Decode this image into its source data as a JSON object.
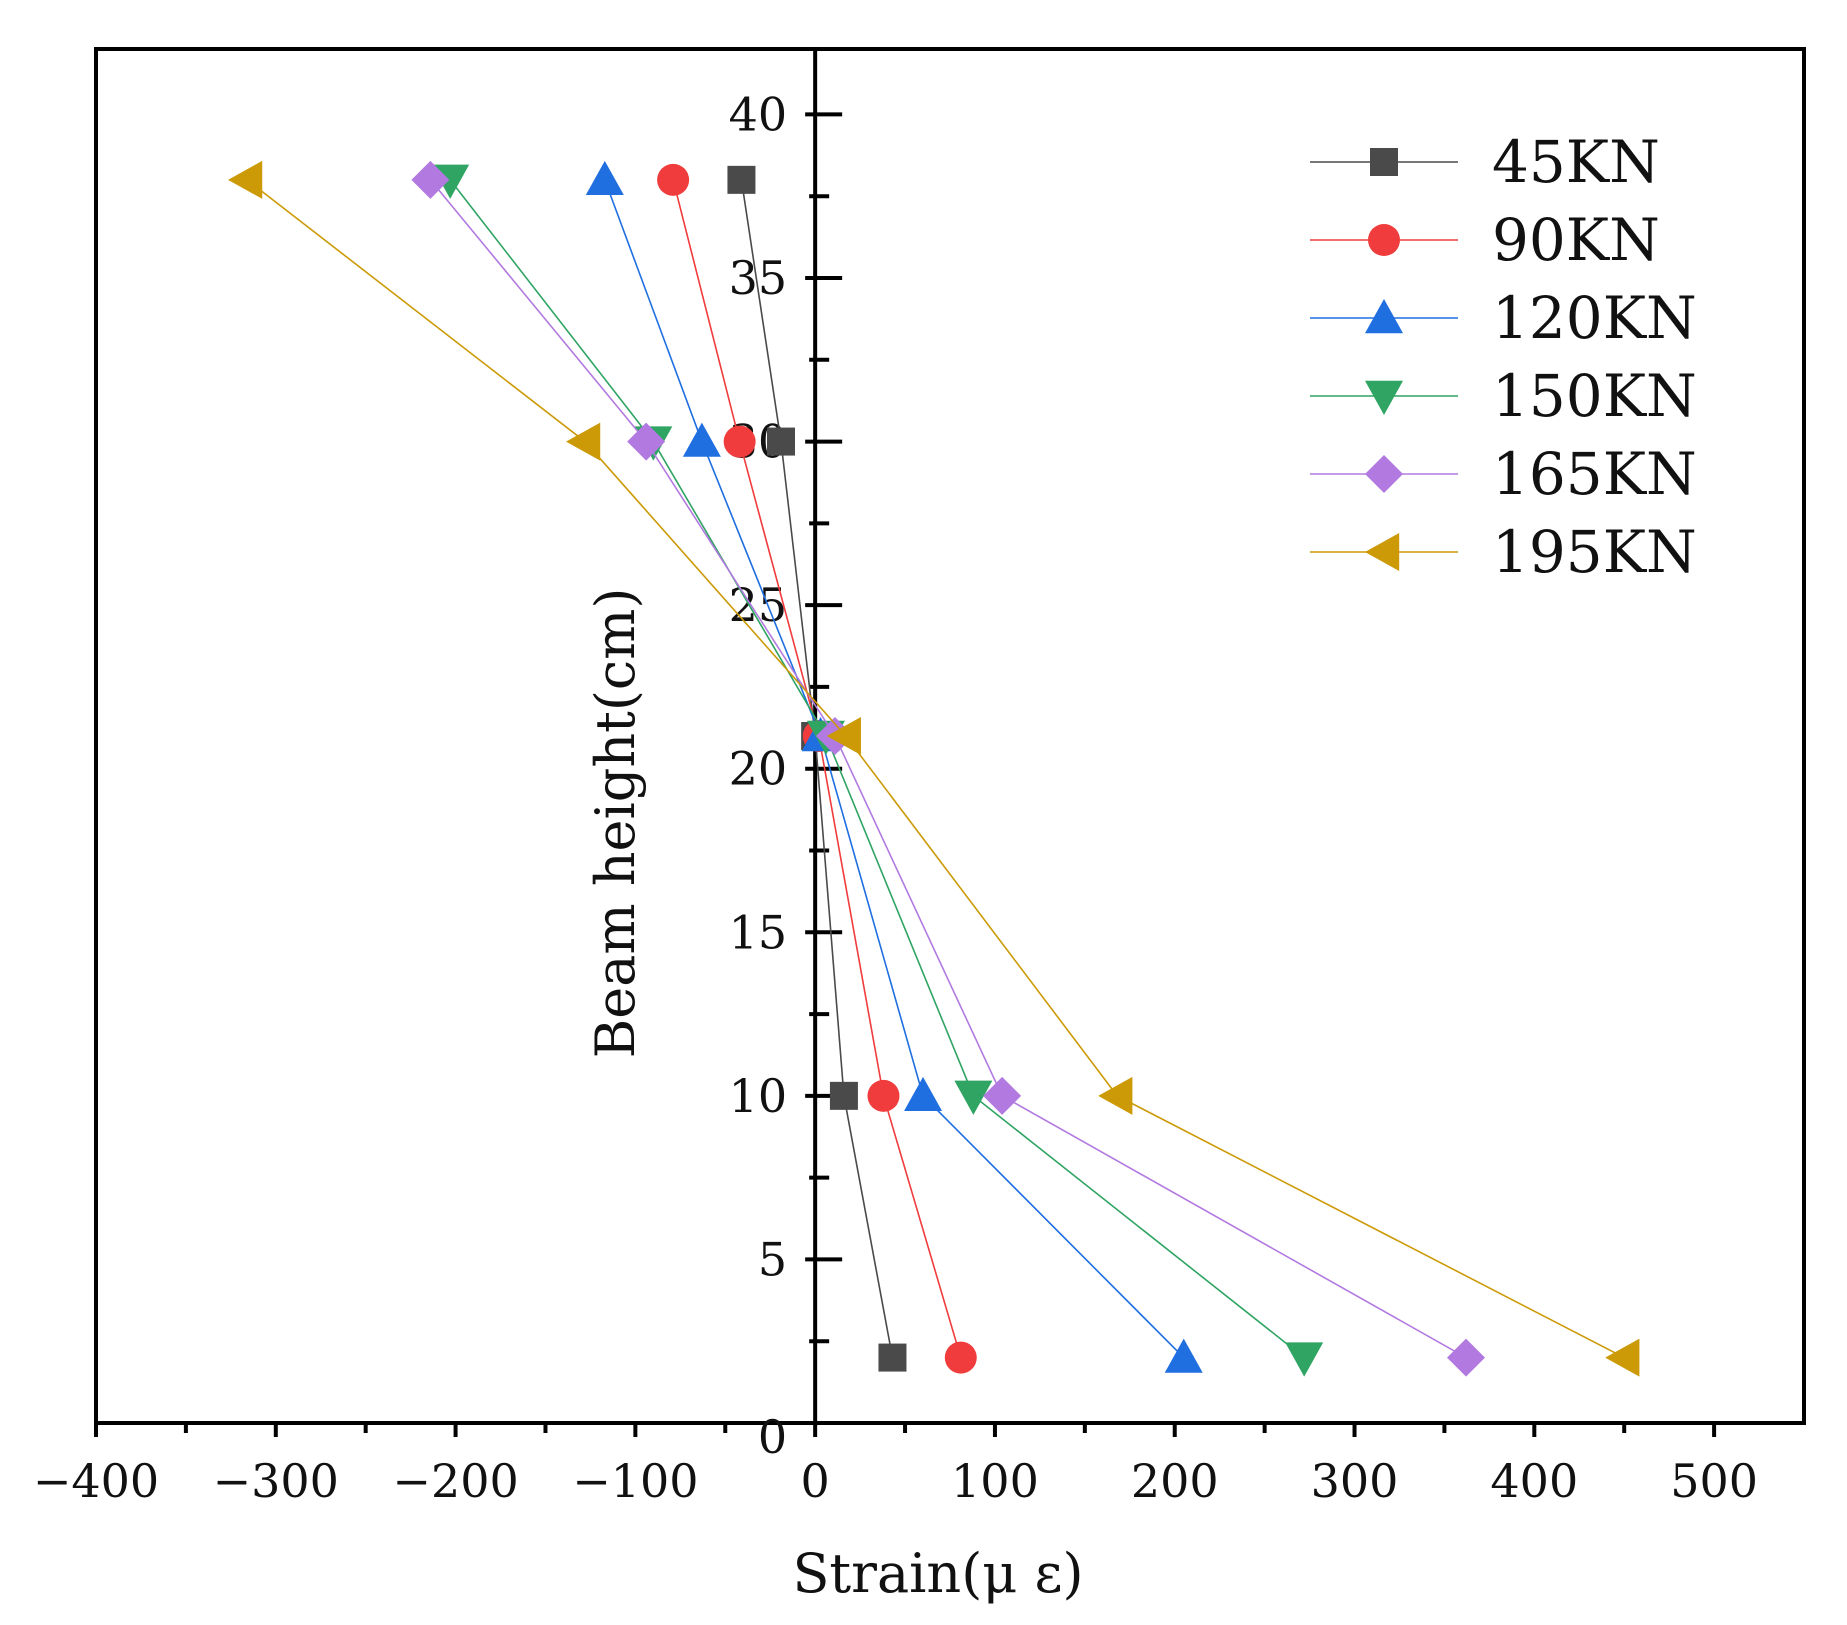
{
  "chart_data": {
    "type": "line",
    "xlabel": "Strain(μ ε)",
    "ylabel": "Beam height(cm)",
    "xlim": [
      -400,
      550
    ],
    "ylim": [
      0,
      42
    ],
    "x_ticks": [
      -400,
      -300,
      -200,
      -100,
      0,
      100,
      200,
      300,
      400,
      500
    ],
    "x_tick_labels": [
      "−400",
      "−300",
      "−200",
      "−100",
      "0",
      "100",
      "200",
      "300",
      "400",
      "500"
    ],
    "y_ticks": [
      5,
      10,
      15,
      20,
      25,
      30,
      35,
      40
    ],
    "y_tick_labels": [
      "5",
      "10",
      "15",
      "20",
      "25",
      "30",
      "35",
      "40"
    ],
    "origin_label": "0",
    "legend_position": "top-right",
    "heights": [
      38,
      30,
      21,
      10,
      2
    ],
    "series": [
      {
        "name": "45KN",
        "color": "#4a4a4a",
        "marker": "square",
        "strain": [
          -41,
          -19,
          0,
          16,
          43
        ]
      },
      {
        "name": "90KN",
        "color": "#f03c3c",
        "marker": "circle",
        "strain": [
          -79,
          -42,
          2,
          38,
          81
        ]
      },
      {
        "name": "120KN",
        "color": "#1f6fe0",
        "marker": "triangle-up",
        "strain": [
          -117,
          -63,
          3,
          60,
          205
        ]
      },
      {
        "name": "150KN",
        "color": "#2fa463",
        "marker": "triangle-down",
        "strain": [
          -203,
          -90,
          6,
          88,
          272
        ]
      },
      {
        "name": "165KN",
        "color": "#b27ae0",
        "marker": "diamond",
        "strain": [
          -214,
          -94,
          11,
          104,
          362
        ]
      },
      {
        "name": "195KN",
        "color": "#cc9a06",
        "marker": "triangle-left",
        "strain": [
          -316,
          -128,
          17,
          168,
          450
        ]
      }
    ]
  }
}
